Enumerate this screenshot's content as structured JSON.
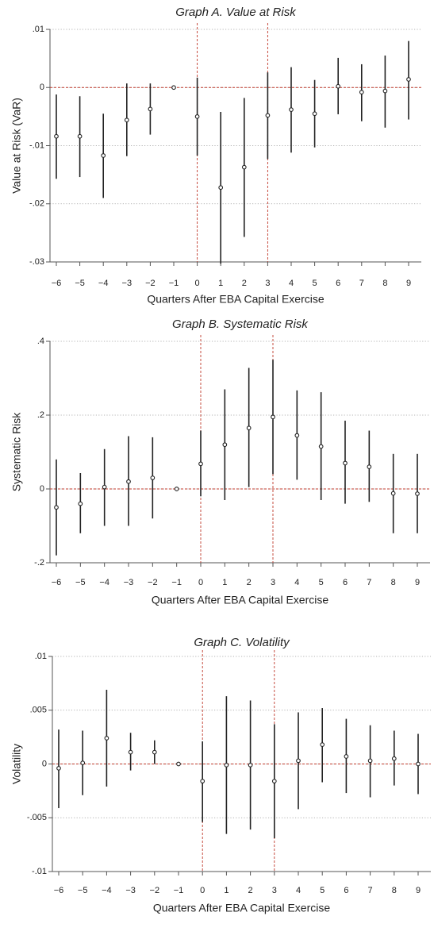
{
  "chart_data": [
    {
      "type": "scatter",
      "style": "point-estimate-with-confidence-intervals",
      "title": "Graph A. Value at Risk",
      "xlabel": "Quarters After EBA Capital Exercise",
      "ylabel": "Value at Risk (VaR)",
      "xlim": [
        -6,
        9
      ],
      "ylim": [
        -0.03,
        0.01
      ],
      "xticks": [
        "−6",
        "−5",
        "−4",
        "−3",
        "−2",
        "−1",
        "0",
        "1",
        "2",
        "3",
        "4",
        "5",
        "6",
        "7",
        "8",
        "9"
      ],
      "yticks": [
        {
          "value": 0.01,
          "label": ".01"
        },
        {
          "value": 0,
          "label": "0"
        },
        {
          "value": -0.01,
          "label": "-.01"
        },
        {
          "value": -0.02,
          "label": "-.02"
        },
        {
          "value": -0.03,
          "label": "-.03"
        }
      ],
      "reference_lines": {
        "horizontal": [
          0
        ],
        "vertical": [
          0,
          3
        ]
      },
      "grid": true,
      "x": [
        -6,
        -5,
        -4,
        -3,
        -2,
        -1,
        0,
        1,
        2,
        3,
        4,
        5,
        6,
        7,
        8,
        9
      ],
      "estimate": [
        -0.0084,
        -0.0084,
        -0.0117,
        -0.0056,
        -0.0037,
        0,
        -0.005,
        -0.0172,
        -0.0137,
        -0.0048,
        -0.0038,
        -0.0045,
        0.0002,
        -0.0008,
        -0.0006,
        0.0014
      ],
      "ci_low": [
        -0.0157,
        -0.0154,
        -0.019,
        -0.0118,
        -0.0081,
        0,
        -0.0117,
        -0.0303,
        -0.0257,
        -0.0123,
        -0.0112,
        -0.0103,
        -0.0046,
        -0.0058,
        -0.0069,
        -0.0055
      ],
      "ci_high": [
        -0.0012,
        -0.0015,
        -0.0045,
        0.0007,
        0.0007,
        0,
        0.0017,
        -0.0042,
        -0.0018,
        0.0026,
        0.0035,
        0.0013,
        0.0051,
        0.004,
        0.0055,
        0.008
      ],
      "colors": {
        "marker": "#222222",
        "reference": "#c0392b",
        "grid": "#9a9a9a"
      }
    },
    {
      "type": "scatter",
      "style": "point-estimate-with-confidence-intervals",
      "title": "Graph B. Systematic Risk",
      "xlabel": "Quarters After EBA Capital Exercise",
      "ylabel": "Systematic Risk",
      "xlim": [
        -6,
        9
      ],
      "ylim": [
        -0.2,
        0.4
      ],
      "xticks": [
        "−6",
        "−5",
        "−4",
        "−3",
        "−2",
        "−1",
        "0",
        "1",
        "2",
        "3",
        "4",
        "5",
        "6",
        "7",
        "8",
        "9"
      ],
      "yticks": [
        {
          "value": 0.4,
          "label": ".4"
        },
        {
          "value": 0.2,
          "label": ".2"
        },
        {
          "value": 0,
          "label": "0"
        },
        {
          "value": -0.2,
          "label": "-.2"
        }
      ],
      "reference_lines": {
        "horizontal": [
          0
        ],
        "vertical": [
          0,
          3
        ]
      },
      "grid": true,
      "x": [
        -6,
        -5,
        -4,
        -3,
        -2,
        -1,
        0,
        1,
        2,
        3,
        4,
        5,
        6,
        7,
        8,
        9
      ],
      "estimate": [
        -0.05,
        -0.04,
        0.005,
        0.02,
        0.03,
        0,
        0.068,
        0.12,
        0.165,
        0.195,
        0.145,
        0.115,
        0.07,
        0.06,
        -0.012,
        -0.013
      ],
      "ci_low": [
        -0.18,
        -0.12,
        -0.1,
        -0.1,
        -0.08,
        0,
        -0.02,
        -0.03,
        0.005,
        0.04,
        0.025,
        -0.03,
        -0.04,
        -0.035,
        -0.12,
        -0.12
      ],
      "ci_high": [
        0.08,
        0.043,
        0.108,
        0.143,
        0.14,
        0,
        0.158,
        0.27,
        0.328,
        0.35,
        0.267,
        0.262,
        0.185,
        0.158,
        0.095,
        0.095
      ],
      "colors": {
        "marker": "#222222",
        "reference": "#c0392b",
        "grid": "#9a9a9a"
      }
    },
    {
      "type": "scatter",
      "style": "point-estimate-with-confidence-intervals",
      "title": "Graph C. Volatility",
      "xlabel": "Quarters After EBA Capital Exercise",
      "ylabel": "Volatility",
      "xlim": [
        -6,
        9
      ],
      "ylim": [
        -0.01,
        0.01
      ],
      "xticks": [
        "−6",
        "−5",
        "−4",
        "−3",
        "−2",
        "−1",
        "0",
        "1",
        "2",
        "3",
        "4",
        "5",
        "6",
        "7",
        "8",
        "9"
      ],
      "yticks": [
        {
          "value": 0.01,
          "label": ".01"
        },
        {
          "value": 0.005,
          "label": ".005"
        },
        {
          "value": 0,
          "label": "0"
        },
        {
          "value": -0.005,
          "label": "-.005"
        },
        {
          "value": -0.01,
          "label": "-.01"
        }
      ],
      "reference_lines": {
        "horizontal": [
          0
        ],
        "vertical": [
          0,
          3
        ]
      },
      "grid": true,
      "x": [
        -6,
        -5,
        -4,
        -3,
        -2,
        -1,
        0,
        1,
        2,
        3,
        4,
        5,
        6,
        7,
        8,
        9
      ],
      "estimate": [
        -0.0004,
        0.0001,
        0.0024,
        0.0011,
        0.0011,
        0,
        -0.0016,
        -0.0001,
        -0.0001,
        -0.0016,
        0.0003,
        0.0018,
        0.0007,
        0.0003,
        0.0005,
        0
      ],
      "ci_low": [
        -0.0041,
        -0.0029,
        -0.0021,
        -0.0006,
        0,
        0,
        -0.0054,
        -0.0065,
        -0.0061,
        -0.0069,
        -0.0042,
        -0.0017,
        -0.0027,
        -0.0031,
        -0.002,
        -0.0028
      ],
      "ci_high": [
        0.0032,
        0.0031,
        0.0069,
        0.0029,
        0.0022,
        0,
        0.0021,
        0.0063,
        0.0059,
        0.0037,
        0.0048,
        0.0052,
        0.0042,
        0.0036,
        0.0031,
        0.0028
      ],
      "colors": {
        "marker": "#222222",
        "reference": "#c0392b",
        "grid": "#9a9a9a"
      }
    }
  ]
}
